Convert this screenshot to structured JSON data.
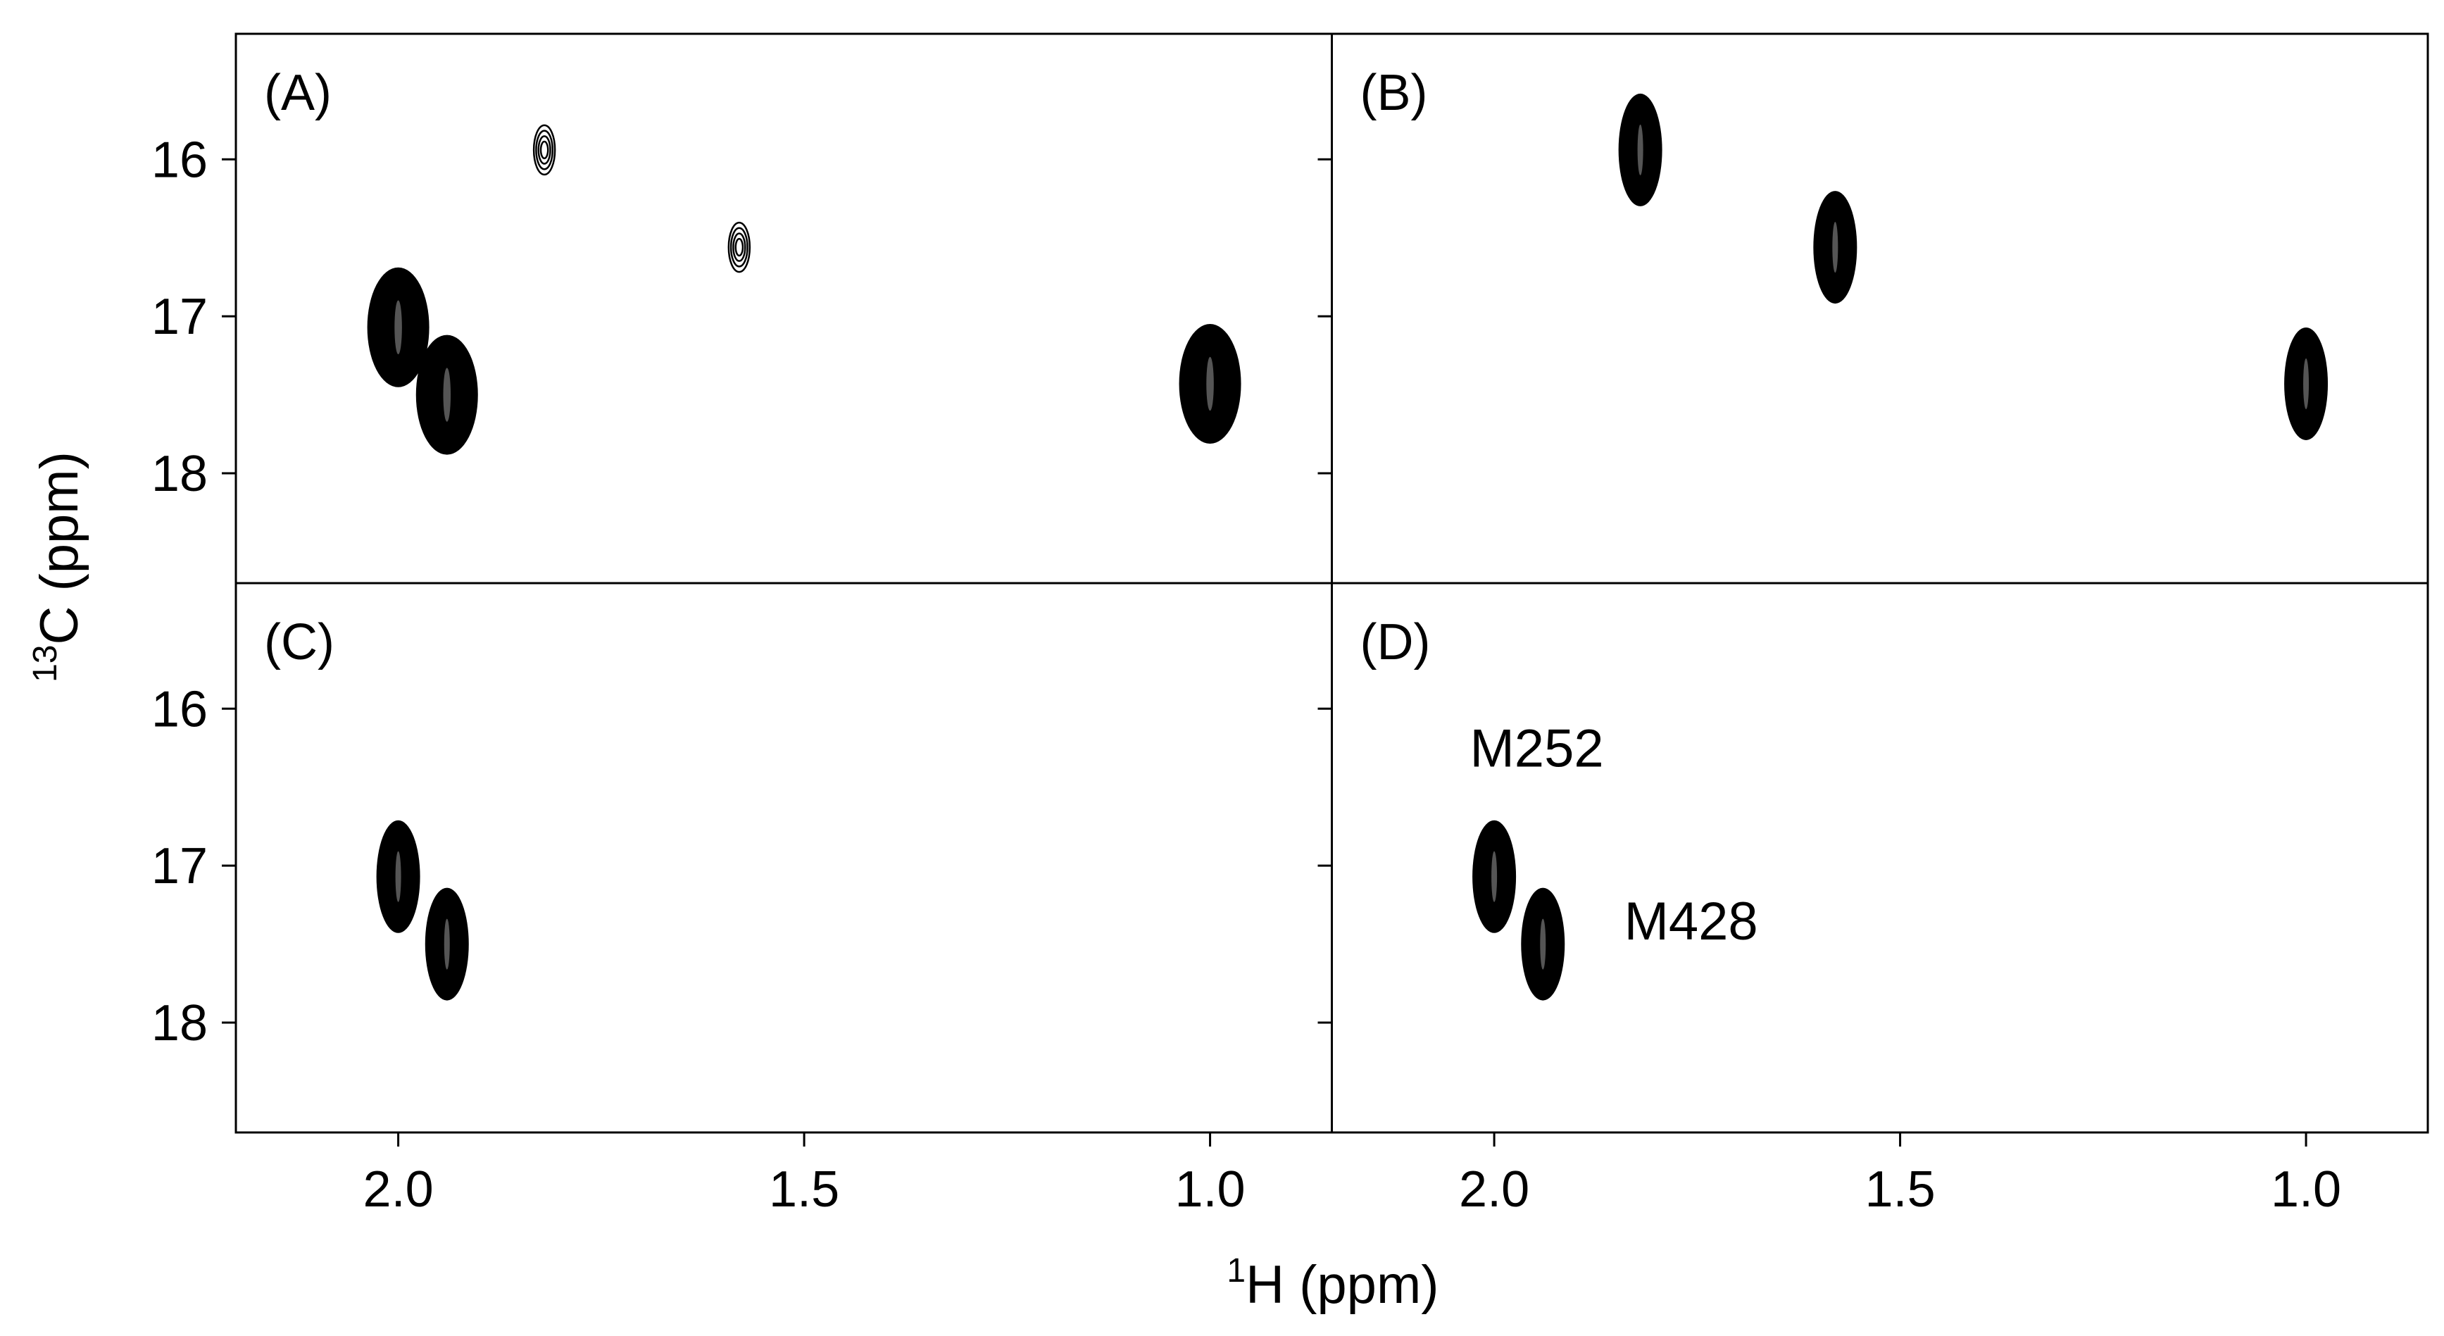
{
  "chart_data": {
    "type": "contour",
    "title": "",
    "xlabel": {
      "sup": "1",
      "main": "H (ppm)"
    },
    "ylabel": {
      "sup": "13",
      "main": "C (ppm)"
    },
    "xlim": [
      2.2,
      0.85
    ],
    "ylim": [
      15.2,
      18.7
    ],
    "x_ticks": [
      2.0,
      1.5,
      1.0
    ],
    "x_tick_labels": [
      "2.0",
      "1.5",
      "1.0"
    ],
    "y_ticks": [
      16,
      17,
      18
    ],
    "y_tick_labels": [
      "16",
      "17",
      "18"
    ],
    "peak_color": "#000000",
    "panels": [
      {
        "label": "(A)",
        "peaks": [
          {
            "h": 1.82,
            "c": 15.94,
            "intensity": "weak"
          },
          {
            "h": 1.58,
            "c": 16.56,
            "intensity": "weak"
          },
          {
            "h": 2.0,
            "c": 17.07,
            "intensity": "strong"
          },
          {
            "h": 1.94,
            "c": 17.5,
            "intensity": "strong"
          },
          {
            "h": 1.0,
            "c": 17.43,
            "intensity": "strong"
          }
        ],
        "annotations": []
      },
      {
        "label": "(B)",
        "peaks": [
          {
            "h": 1.82,
            "c": 15.94,
            "intensity": "medium"
          },
          {
            "h": 1.58,
            "c": 16.56,
            "intensity": "medium"
          },
          {
            "h": 1.0,
            "c": 17.43,
            "intensity": "medium"
          }
        ],
        "annotations": []
      },
      {
        "label": "(C)",
        "peaks": [
          {
            "h": 2.0,
            "c": 17.07,
            "intensity": "medium"
          },
          {
            "h": 1.94,
            "c": 17.5,
            "intensity": "medium"
          }
        ],
        "annotations": []
      },
      {
        "label": "(D)",
        "peaks": [
          {
            "h": 2.0,
            "c": 17.07,
            "intensity": "medium"
          },
          {
            "h": 1.94,
            "c": 17.5,
            "intensity": "medium"
          }
        ],
        "annotations": [
          {
            "text": "M252",
            "h": 2.03,
            "c": 16.37
          },
          {
            "text": "M428",
            "h": 1.84,
            "c": 17.47
          }
        ]
      }
    ]
  }
}
